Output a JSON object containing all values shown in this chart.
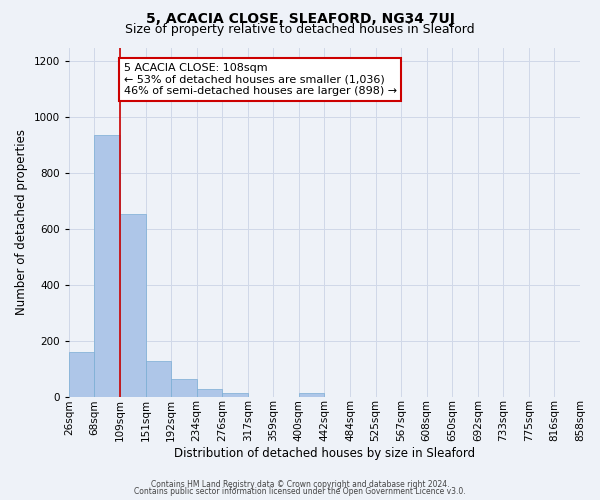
{
  "title": "5, ACACIA CLOSE, SLEAFORD, NG34 7UJ",
  "subtitle": "Size of property relative to detached houses in Sleaford",
  "xlabel": "Distribution of detached houses by size in Sleaford",
  "ylabel": "Number of detached properties",
  "bar_values": [
    160,
    935,
    655,
    128,
    62,
    28,
    14,
    0,
    0,
    14,
    0,
    0,
    0,
    0,
    0,
    0,
    0,
    0,
    0,
    0
  ],
  "bar_labels": [
    "26sqm",
    "68sqm",
    "109sqm",
    "151sqm",
    "192sqm",
    "234sqm",
    "276sqm",
    "317sqm",
    "359sqm",
    "400sqm",
    "442sqm",
    "484sqm",
    "525sqm",
    "567sqm",
    "608sqm",
    "650sqm",
    "692sqm",
    "733sqm",
    "775sqm",
    "816sqm",
    "858sqm"
  ],
  "bar_color": "#aec6e8",
  "bar_edge_color": "#7aadd4",
  "marker_line_color": "#cc0000",
  "ylim": [
    0,
    1250
  ],
  "yticks": [
    0,
    200,
    400,
    600,
    800,
    1000,
    1200
  ],
  "annotation_title": "5 ACACIA CLOSE: 108sqm",
  "annotation_line1": "← 53% of detached houses are smaller (1,036)",
  "annotation_line2": "46% of semi-detached houses are larger (898) →",
  "annotation_box_color": "#ffffff",
  "annotation_box_edge": "#cc0000",
  "footer1": "Contains HM Land Registry data © Crown copyright and database right 2024.",
  "footer2": "Contains public sector information licensed under the Open Government Licence v3.0.",
  "bg_color": "#eef2f8",
  "grid_color": "#d0d8e8",
  "title_fontsize": 10,
  "subtitle_fontsize": 9,
  "label_fontsize": 8.5,
  "tick_fontsize": 7.5,
  "annot_fontsize": 8,
  "footer_fontsize": 5.5
}
